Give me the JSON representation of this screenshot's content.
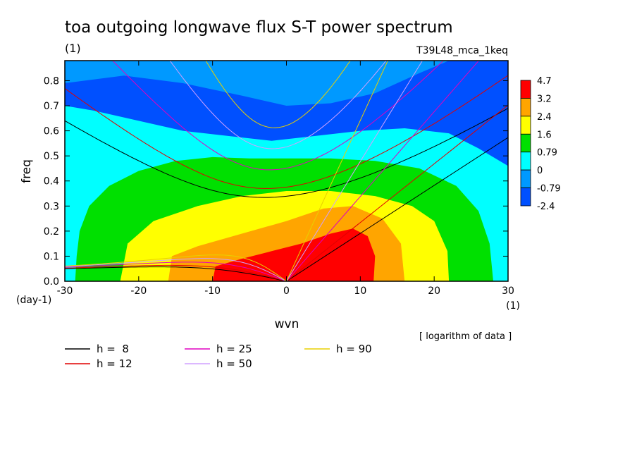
{
  "chart_data": {
    "type": "heatmap",
    "title": "toa outgoing longwave flux S-T power spectrum",
    "subtitle_left": "(1)",
    "subtitle_right": "T39L48_mca_1keq",
    "xlabel": "wvn",
    "xunit": "(1)",
    "ylabel": "freq",
    "yunit": "(day-1)",
    "note": "[ logarithm of data ]",
    "xlim": [
      -30,
      30
    ],
    "ylim": [
      0,
      0.88
    ],
    "x_ticks": [
      -30,
      -20,
      -10,
      0,
      10,
      20,
      30
    ],
    "y_ticks": [
      0.0,
      0.1,
      0.2,
      0.3,
      0.4,
      0.5,
      0.6,
      0.7,
      0.8
    ],
    "x_tick_labels": [
      "-30",
      "-20",
      "-10",
      "0",
      "10",
      "20",
      "30"
    ],
    "y_tick_labels": [
      "0.0",
      "0.1",
      "0.2",
      "0.3",
      "0.4",
      "0.5",
      "0.6",
      "0.7",
      "0.8"
    ],
    "colorbar": {
      "levels": [
        "4.7",
        "3.2",
        "2.4",
        "1.6",
        "0.79",
        "0",
        "-0.79",
        "-2.4"
      ],
      "colors": [
        "#ff0000",
        "#ffa500",
        "#ffff00",
        "#00e000",
        "#00ffff",
        "#0099ff",
        "#0050ff"
      ]
    },
    "contour_regions": [
      {
        "level": "-0.79",
        "color": "#0099ff",
        "points": [
          [
            -30,
            0.88
          ],
          [
            -30,
            0.79
          ],
          [
            -22,
            0.82
          ],
          [
            -14,
            0.79
          ],
          [
            -6,
            0.74
          ],
          [
            0,
            0.7
          ],
          [
            6,
            0.71
          ],
          [
            12,
            0.75
          ],
          [
            18,
            0.83
          ],
          [
            22,
            0.88
          ]
        ]
      },
      {
        "level": "0",
        "color": "#00ffff",
        "points": [
          [
            -30,
            0.7
          ],
          [
            -26,
            0.68
          ],
          [
            -20,
            0.64
          ],
          [
            -14,
            0.6
          ],
          [
            -8,
            0.58
          ],
          [
            -2,
            0.56
          ],
          [
            4,
            0.58
          ],
          [
            10,
            0.6
          ],
          [
            16,
            0.61
          ],
          [
            22,
            0.59
          ],
          [
            26,
            0.53
          ],
          [
            30,
            0.46
          ],
          [
            30,
            0.0
          ],
          [
            -30,
            0.0
          ]
        ]
      },
      {
        "level": "0.79",
        "color": "#00e000",
        "points": [
          [
            -28.6,
            0
          ],
          [
            -28.4,
            0.1
          ],
          [
            -28,
            0.2
          ],
          [
            -26.7,
            0.3
          ],
          [
            -24,
            0.38
          ],
          [
            -20,
            0.44
          ],
          [
            -15,
            0.48
          ],
          [
            -10,
            0.495
          ],
          [
            -5,
            0.49
          ],
          [
            0,
            0.49
          ],
          [
            6,
            0.49
          ],
          [
            12,
            0.48
          ],
          [
            18,
            0.45
          ],
          [
            23,
            0.38
          ],
          [
            26,
            0.28
          ],
          [
            27.5,
            0.15
          ],
          [
            28,
            0
          ]
        ]
      },
      {
        "level": "1.6",
        "color": "#ffff00",
        "points": [
          [
            -22.5,
            0
          ],
          [
            -21.5,
            0.15
          ],
          [
            -18,
            0.24
          ],
          [
            -12,
            0.3
          ],
          [
            -6,
            0.34
          ],
          [
            0,
            0.36
          ],
          [
            6,
            0.36
          ],
          [
            12,
            0.34
          ],
          [
            17,
            0.3
          ],
          [
            20,
            0.24
          ],
          [
            21.8,
            0.12
          ],
          [
            22,
            0
          ]
        ]
      },
      {
        "level": "2.4",
        "color": "#ffa500",
        "points": [
          [
            -16,
            0
          ],
          [
            -15.5,
            0.1
          ],
          [
            -12,
            0.14
          ],
          [
            -6,
            0.19
          ],
          [
            0,
            0.24
          ],
          [
            5,
            0.29
          ],
          [
            9,
            0.3
          ],
          [
            13,
            0.25
          ],
          [
            15.5,
            0.15
          ],
          [
            16,
            0
          ]
        ]
      },
      {
        "level": "3.2",
        "color": "#ff0000",
        "points": [
          [
            -10,
            0
          ],
          [
            -9.6,
            0.06
          ],
          [
            -6,
            0.09
          ],
          [
            -2,
            0.12
          ],
          [
            2,
            0.15
          ],
          [
            6,
            0.19
          ],
          [
            9,
            0.21
          ],
          [
            11,
            0.18
          ],
          [
            12,
            0.1
          ],
          [
            11.8,
            0
          ]
        ]
      }
    ],
    "series": [
      {
        "name": "h =  8",
        "color": "#000000",
        "eig_h": 8
      },
      {
        "name": "h = 12",
        "color": "#e00000",
        "eig_h": 12
      },
      {
        "name": "h = 25",
        "color": "#e000c0",
        "eig_h": 25
      },
      {
        "name": "h = 50",
        "color": "#d0a0ff",
        "eig_h": 50
      },
      {
        "name": "h = 90",
        "color": "#e8d000",
        "eig_h": 90
      }
    ]
  }
}
